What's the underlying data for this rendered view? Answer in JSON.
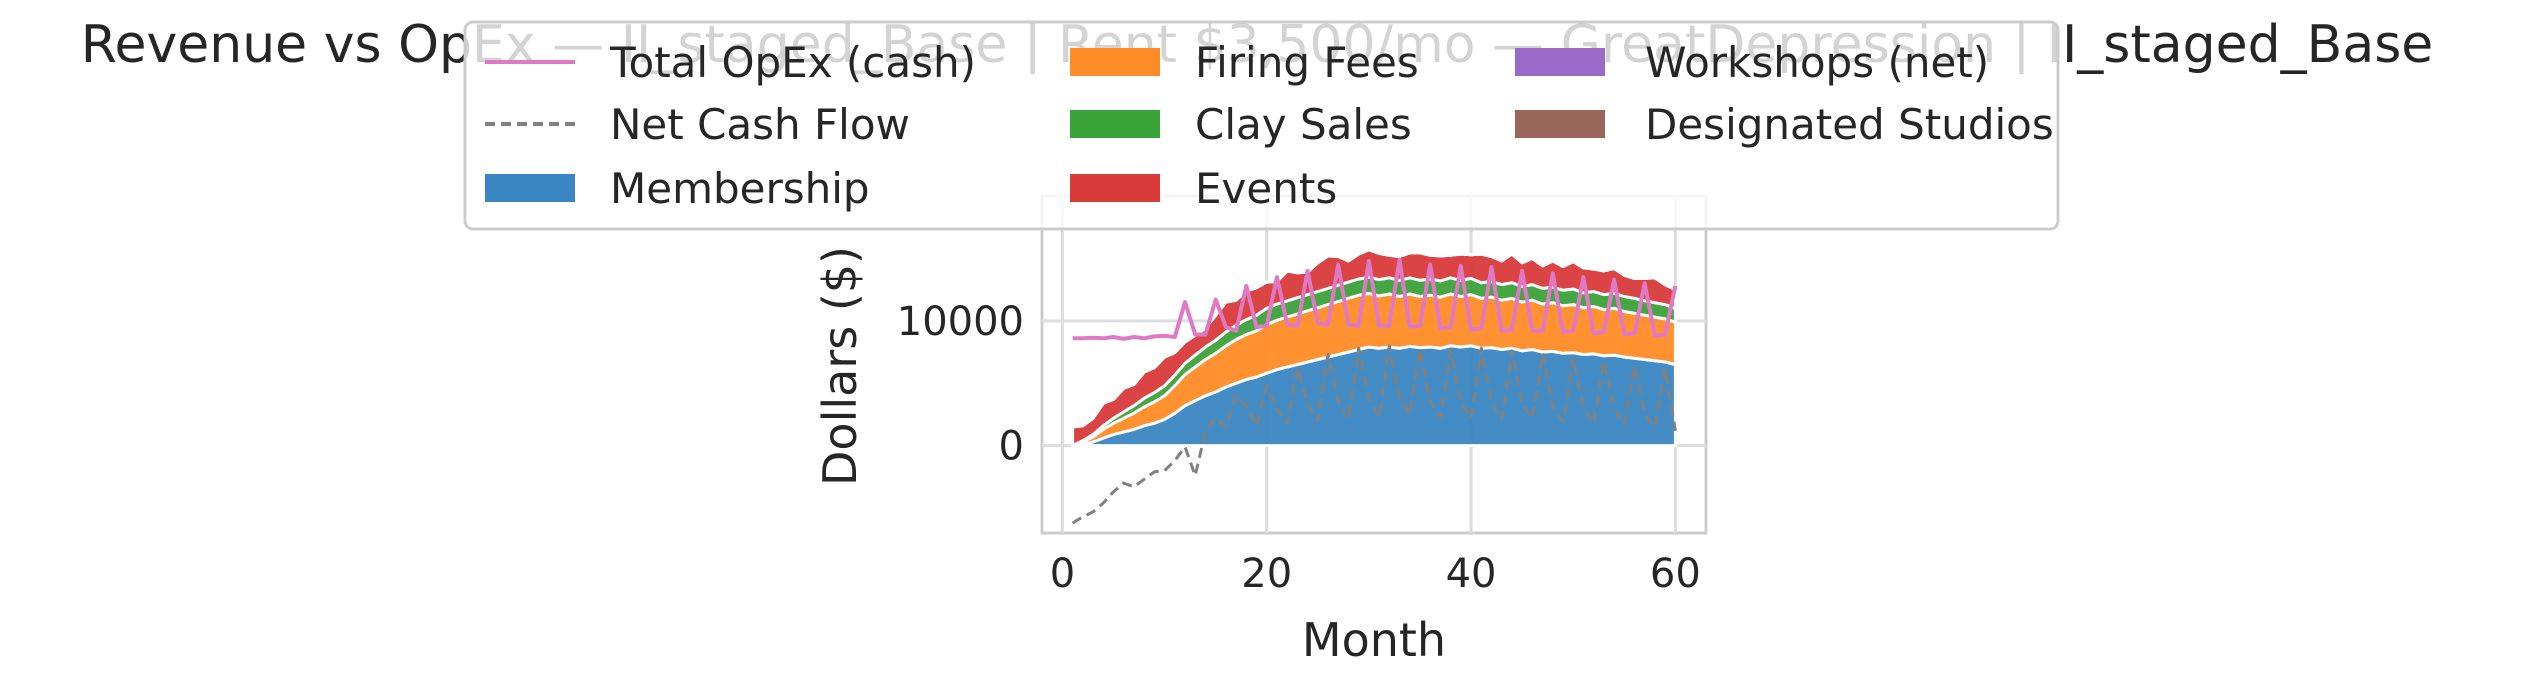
{
  "chart_data": {
    "type": "area",
    "title": "Revenue vs OpEx — II_staged_Base | Rent $3,500/mo — GreatDepression | II_staged_Base",
    "xlabel": "Month",
    "ylabel": "Dollars ($)",
    "xlim": [
      -2,
      63
    ],
    "ylim": [
      -7000,
      20000
    ],
    "x_ticks": [
      0,
      20,
      40,
      60
    ],
    "y_ticks": [
      0,
      10000
    ],
    "grid": true,
    "legend_position": "top-center",
    "x": [
      1,
      2,
      3,
      4,
      5,
      6,
      7,
      8,
      9,
      10,
      11,
      12,
      13,
      14,
      15,
      16,
      17,
      18,
      19,
      20,
      21,
      22,
      23,
      24,
      25,
      26,
      27,
      28,
      29,
      30,
      31,
      32,
      33,
      34,
      35,
      36,
      37,
      38,
      39,
      40,
      41,
      42,
      43,
      44,
      45,
      46,
      47,
      48,
      49,
      50,
      51,
      52,
      53,
      54,
      55,
      56,
      57,
      58,
      59,
      60
    ],
    "stacked_series": [
      {
        "name": "Membership",
        "color": "#3a86c2",
        "values": [
          0,
          100,
          300,
          600,
          900,
          1100,
          1300,
          1600,
          1800,
          2100,
          2600,
          3200,
          3600,
          4000,
          4300,
          4700,
          5000,
          5300,
          5500,
          5800,
          6100,
          6300,
          6500,
          6700,
          6900,
          7100,
          7300,
          7500,
          7700,
          7900,
          7800,
          7900,
          7800,
          7950,
          7850,
          7900,
          7800,
          8000,
          7900,
          8000,
          7800,
          7850,
          7700,
          7800,
          7600,
          7700,
          7500,
          7550,
          7400,
          7450,
          7300,
          7350,
          7200,
          7250,
          7100,
          7000,
          6900,
          6800,
          6700,
          6500
        ]
      },
      {
        "name": "Firing Fees",
        "color": "#ff8c26",
        "values": [
          0,
          200,
          400,
          700,
          900,
          1100,
          1300,
          1500,
          1700,
          1900,
          2200,
          2500,
          2700,
          2900,
          3100,
          3300,
          3500,
          3600,
          3700,
          3900,
          3950,
          4000,
          4050,
          4100,
          4150,
          4200,
          4250,
          4300,
          4350,
          4300,
          4200,
          4250,
          4150,
          4200,
          4100,
          4150,
          4100,
          4150,
          4050,
          4100,
          4000,
          4050,
          3950,
          4000,
          3900,
          3950,
          3850,
          3900,
          3800,
          3850,
          3750,
          3800,
          3700,
          3750,
          3650,
          3600,
          3550,
          3500,
          3450,
          3400
        ]
      },
      {
        "name": "Clay Sales",
        "color": "#3aa33a",
        "values": [
          0,
          100,
          200,
          300,
          400,
          500,
          600,
          700,
          750,
          800,
          850,
          900,
          950,
          1000,
          1050,
          1100,
          1150,
          1200,
          1250,
          1300,
          1300,
          1300,
          1300,
          1300,
          1300,
          1300,
          1300,
          1300,
          1300,
          1300,
          1300,
          1300,
          1300,
          1300,
          1300,
          1300,
          1300,
          1300,
          1300,
          1300,
          1250,
          1250,
          1250,
          1250,
          1250,
          1250,
          1250,
          1250,
          1250,
          1250,
          1200,
          1200,
          1200,
          1200,
          1200,
          1200,
          1150,
          1150,
          1150,
          1100
        ]
      },
      {
        "name": "Events",
        "color": "#d93a3a",
        "values": [
          1500,
          1200,
          1300,
          1800,
          1500,
          1900,
          1700,
          2100,
          2000,
          2300,
          1800,
          1700,
          1600,
          1500,
          2000,
          2400,
          2000,
          2300,
          2200,
          2100,
          1800,
          2400,
          2000,
          1800,
          2300,
          2600,
          2300,
          1700,
          2000,
          2200,
          2100,
          1800,
          1900,
          2000,
          2200,
          1900,
          2000,
          1800,
          2100,
          1900,
          2300,
          2000,
          1900,
          2300,
          1900,
          2100,
          1800,
          2100,
          1900,
          2200,
          2000,
          1800,
          1900,
          2000,
          1700,
          1600,
          1800,
          2000,
          1600,
          1500
        ]
      },
      {
        "name": "Workshops (net)",
        "color": "#9b6ac9",
        "values": [
          0,
          0,
          0,
          0,
          0,
          0,
          0,
          0,
          0,
          0,
          0,
          0,
          0,
          0,
          0,
          0,
          0,
          0,
          0,
          0,
          0,
          0,
          0,
          0,
          0,
          0,
          0,
          0,
          0,
          0,
          0,
          0,
          0,
          0,
          0,
          0,
          0,
          0,
          0,
          0,
          0,
          0,
          0,
          0,
          0,
          0,
          0,
          0,
          0,
          0,
          0,
          0,
          0,
          0,
          0,
          0,
          0,
          0,
          0,
          0
        ]
      },
      {
        "name": "Designated Studios",
        "color": "#9a6659",
        "values": [
          0,
          0,
          0,
          0,
          0,
          0,
          0,
          0,
          0,
          0,
          0,
          0,
          0,
          0,
          0,
          0,
          0,
          0,
          0,
          0,
          0,
          0,
          0,
          0,
          0,
          0,
          0,
          0,
          0,
          0,
          0,
          0,
          0,
          0,
          0,
          0,
          0,
          0,
          0,
          0,
          0,
          0,
          0,
          0,
          0,
          0,
          0,
          0,
          0,
          0,
          0,
          0,
          0,
          0,
          0,
          0,
          0,
          0,
          0,
          0
        ]
      }
    ],
    "line_series": [
      {
        "name": "Total OpEx (cash)",
        "color": "#e079c4",
        "dash": "solid",
        "values": [
          8600,
          8600,
          8650,
          8600,
          8700,
          8550,
          8700,
          8600,
          8750,
          8800,
          8700,
          11500,
          8900,
          8900,
          11700,
          9500,
          9200,
          12800,
          9500,
          9600,
          13500,
          9700,
          9600,
          14000,
          9800,
          9700,
          14500,
          9700,
          9600,
          14800,
          9600,
          9600,
          14900,
          9500,
          9600,
          14500,
          9400,
          9500,
          14400,
          9300,
          9400,
          14300,
          9200,
          9300,
          14000,
          9200,
          9200,
          13800,
          9100,
          9200,
          13500,
          9000,
          9100,
          13300,
          8900,
          9000,
          13000,
          8800,
          8900,
          12800
        ]
      },
      {
        "name": "Net Cash Flow",
        "color": "#808080",
        "dash": "dashed",
        "values": [
          -6200,
          -5700,
          -5300,
          -4600,
          -3700,
          -3000,
          -3300,
          -2700,
          -2100,
          -2000,
          -1200,
          -100,
          -2400,
          1100,
          2200,
          1500,
          4000,
          3200,
          1600,
          4800,
          2900,
          1800,
          6200,
          3300,
          2000,
          7300,
          3600,
          2100,
          7800,
          3700,
          2300,
          8000,
          3800,
          2500,
          7700,
          3500,
          2300,
          7600,
          3500,
          2200,
          7800,
          3400,
          2100,
          7600,
          3300,
          2200,
          7400,
          3100,
          1900,
          7000,
          3000,
          1800,
          6800,
          3000,
          1700,
          6400,
          2500,
          1500,
          6200,
          1200
        ]
      }
    ]
  },
  "legend": {
    "items": [
      {
        "label": "Total OpEx (cash)",
        "kind": "line",
        "color": "#e079c4"
      },
      {
        "label": "Firing Fees",
        "kind": "patch",
        "color": "#ff8c26"
      },
      {
        "label": "Workshops (net)",
        "kind": "patch",
        "color": "#9b6ac9"
      },
      {
        "label": "Net Cash Flow",
        "kind": "dashed",
        "color": "#808080"
      },
      {
        "label": "Clay Sales",
        "kind": "patch",
        "color": "#3aa33a"
      },
      {
        "label": "Designated Studios",
        "kind": "patch",
        "color": "#9a6659"
      },
      {
        "label": "Membership",
        "kind": "patch",
        "color": "#3a86c2"
      },
      {
        "label": "Events",
        "kind": "patch",
        "color": "#d93a3a"
      }
    ]
  }
}
